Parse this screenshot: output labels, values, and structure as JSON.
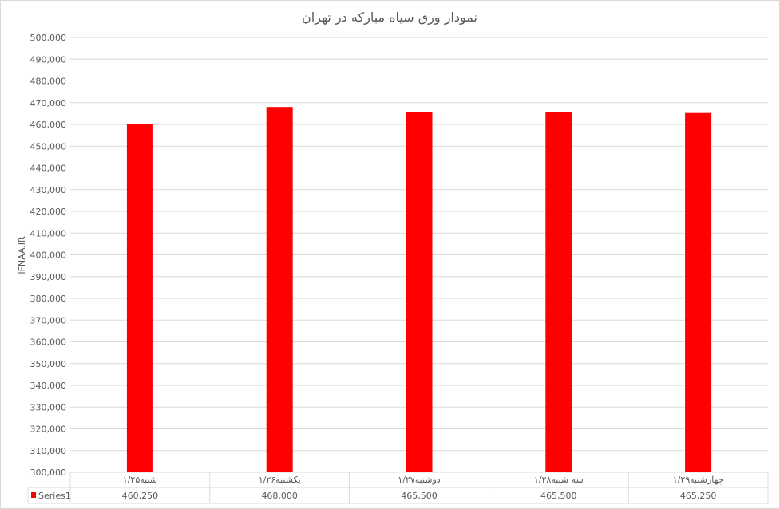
{
  "chart_data": {
    "type": "bar",
    "title": "نمودار ورق سیاه مبارکه در تهران",
    "ylabel": "IFNAA.IR",
    "xlabel": "",
    "categories": [
      "شنبه۱/۲۵",
      "یکشنبه۱/۲۶",
      "دوشنبه۱/۲۷",
      "سه شنبه۱/۲۸",
      "چهارشنبه۱/۲۹"
    ],
    "series": [
      {
        "name": "Series1",
        "values": [
          460250,
          468000,
          465500,
          465500,
          465250
        ],
        "color": "#ff0000"
      }
    ],
    "value_labels": [
      "460,250",
      "468,000",
      "465,500",
      "465,500",
      "465,250"
    ],
    "ylim": [
      300000,
      500000
    ],
    "ytick_step": 10000,
    "grid": true,
    "legend": "data-table",
    "data_table": true
  }
}
